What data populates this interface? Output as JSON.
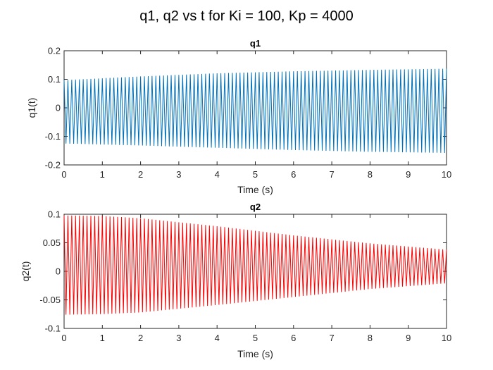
{
  "figure": {
    "suptitle": "q1, q2 vs t for Ki = 100, Kp = 4000"
  },
  "chart_data": [
    {
      "type": "line",
      "title": "q1",
      "xlabel": "Time (s)",
      "ylabel": "q1(t)",
      "xlim": [
        0,
        10
      ],
      "ylim": [
        -0.2,
        0.2
      ],
      "xticks": [
        0,
        1,
        2,
        3,
        4,
        5,
        6,
        7,
        8,
        9,
        10
      ],
      "xtick_labels": [
        "0",
        "1",
        "2",
        "3",
        "4",
        "5",
        "6",
        "7",
        "8",
        "9",
        "10"
      ],
      "yticks": [
        -0.2,
        -0.1,
        0,
        0.1,
        0.2
      ],
      "ytick_labels": [
        "-0.2",
        "-0.1",
        "0",
        "0.1",
        "0.2"
      ],
      "series": [
        {
          "name": "q1",
          "color": "#0072BD",
          "cycles": 100,
          "envelope": {
            "t": [
              0,
              2,
              4,
              6,
              8,
              10
            ],
            "upper": [
              0.097,
              0.11,
              0.121,
              0.128,
              0.133,
              0.137
            ],
            "lower": [
              -0.125,
              -0.132,
              -0.14,
              -0.148,
              -0.154,
              -0.158
            ]
          }
        }
      ]
    },
    {
      "type": "line",
      "title": "q2",
      "xlabel": "Time (s)",
      "ylabel": "q2(t)",
      "xlim": [
        0,
        10
      ],
      "ylim": [
        -0.1,
        0.1
      ],
      "xticks": [
        0,
        1,
        2,
        3,
        4,
        5,
        6,
        7,
        8,
        9,
        10
      ],
      "xtick_labels": [
        "0",
        "1",
        "2",
        "3",
        "4",
        "5",
        "6",
        "7",
        "8",
        "9",
        "10"
      ],
      "yticks": [
        -0.1,
        -0.05,
        0,
        0.05,
        0.1
      ],
      "ytick_labels": [
        "-0.1",
        "-0.05",
        "0",
        "0.05",
        "0.1"
      ],
      "series": [
        {
          "name": "q2",
          "color": "#FF0000",
          "cycles": 100,
          "envelope": {
            "t": [
              0,
              1,
              2,
              4,
              6,
              8,
              10
            ],
            "upper": [
              0.098,
              0.097,
              0.093,
              0.079,
              0.063,
              0.049,
              0.038
            ],
            "lower": [
              -0.076,
              -0.075,
              -0.072,
              -0.059,
              -0.045,
              -0.031,
              -0.021
            ]
          }
        }
      ]
    }
  ]
}
